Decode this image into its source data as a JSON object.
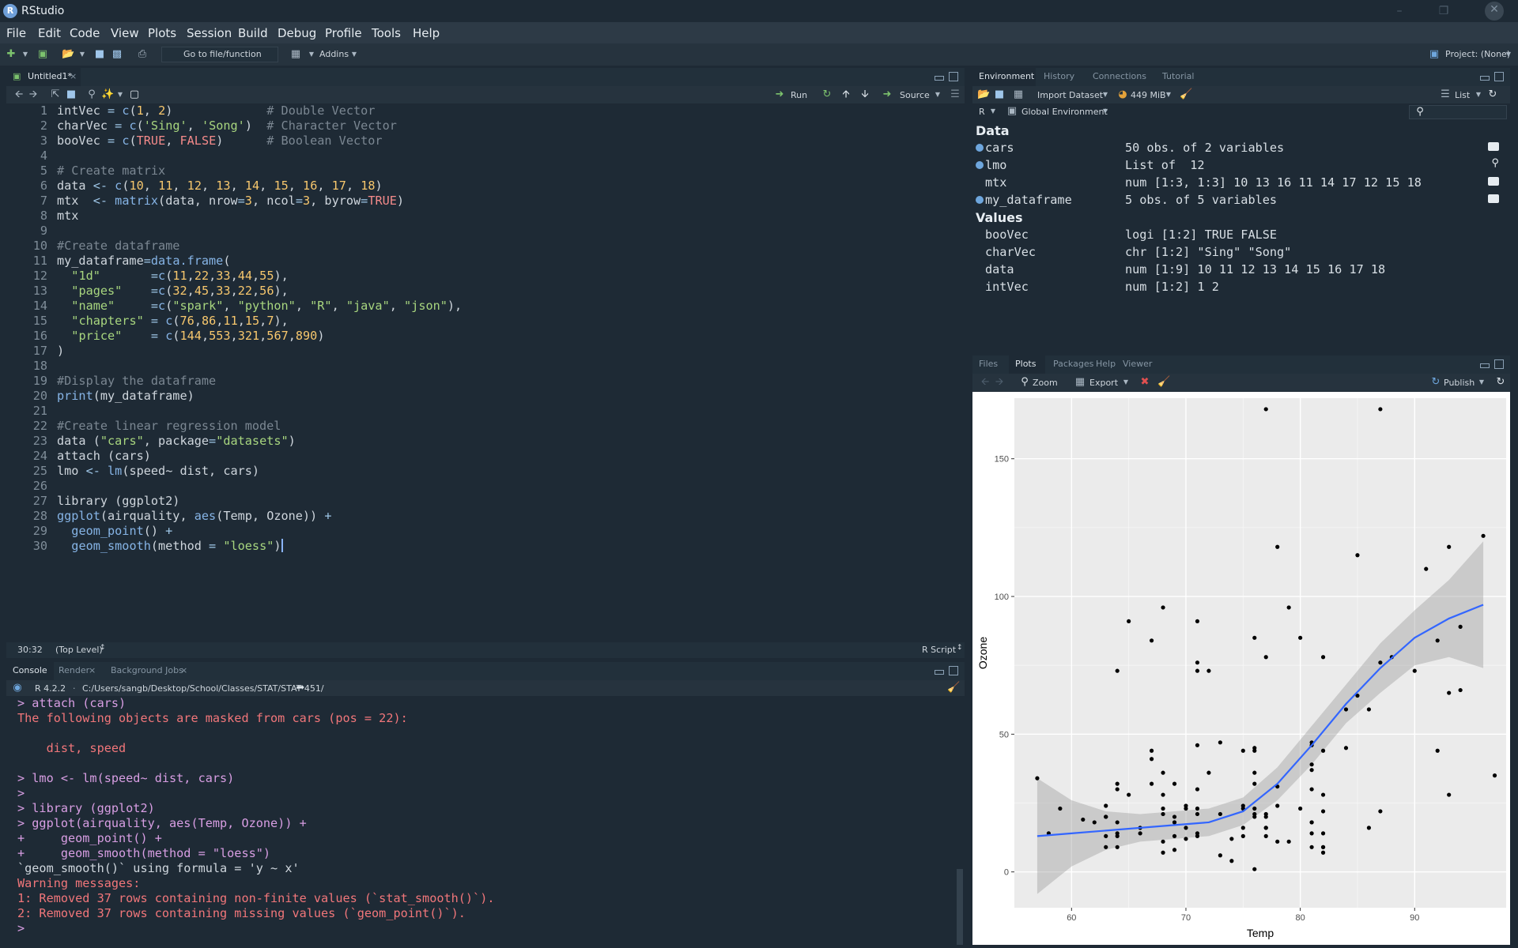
{
  "window": {
    "title": "RStudio",
    "logo_letter": "R"
  },
  "menu": [
    "File",
    "Edit",
    "Code",
    "View",
    "Plots",
    "Session",
    "Build",
    "Debug",
    "Profile",
    "Tools",
    "Help"
  ],
  "toolbar": {
    "goto_label": "Go to file/function",
    "addins_label": "Addins",
    "project_label": "Project: (None)"
  },
  "editor": {
    "tab_label": "Untitled1*",
    "run_label": "Run",
    "source_label": "Source",
    "cursor_pos": "30:32",
    "scope": "(Top Level)",
    "file_type": "R Script",
    "lines": [
      "intVec = c(1, 2)             # Double Vector",
      "charVec = c('Sing', 'Song')  # Character Vector",
      "booVec = c(TRUE, FALSE)      # Boolean Vector",
      "",
      "# Create matrix",
      "data <- c(10, 11, 12, 13, 14, 15, 16, 17, 18)",
      "mtx  <- matrix(data, nrow=3, ncol=3, byrow=TRUE)",
      "mtx",
      "",
      "#Create dataframe",
      "my_dataframe=data.frame(",
      "  \"1d\"       =c(11,22,33,44,55),",
      "  \"pages\"    =c(32,45,33,22,56),",
      "  \"name\"     =c(\"spark\", \"python\", \"R\", \"java\", \"json\"),",
      "  \"chapters\" = c(76,86,11,15,7),",
      "  \"price\"    = c(144,553,321,567,890)",
      ")",
      "",
      "#Display the dataframe",
      "print(my_dataframe)",
      "",
      "#Create linear regression model",
      "data (\"cars\", package=\"datasets\")",
      "attach (cars)",
      "lmo <- lm(speed~ dist, cars)",
      "",
      "library (ggplot2)",
      "ggplot(airquality, aes(Temp, Ozone)) +",
      "  geom_point() +",
      "  geom_smooth(method = \"loess\")"
    ]
  },
  "console": {
    "tabs": [
      "Console",
      "Render",
      "Background Jobs"
    ],
    "r_version": "R 4.2.2",
    "path": "C:/Users/sangb/Desktop/School/Classes/STAT/STAT 451/",
    "lines": [
      {
        "kind": "cmd",
        "text": "> attach (cars)"
      },
      {
        "kind": "err",
        "text": "The following objects are masked from cars (pos = 22):"
      },
      {
        "kind": "err",
        "text": ""
      },
      {
        "kind": "err",
        "text": "    dist, speed"
      },
      {
        "kind": "err",
        "text": ""
      },
      {
        "kind": "cmd",
        "text": "> lmo <- lm(speed~ dist, cars)"
      },
      {
        "kind": "cmd",
        "text": ">"
      },
      {
        "kind": "cmd",
        "text": "> library (ggplot2)"
      },
      {
        "kind": "cmd",
        "text": "> ggplot(airquality, aes(Temp, Ozone)) +"
      },
      {
        "kind": "cmd",
        "text": "+     geom_point() +"
      },
      {
        "kind": "cmd",
        "text": "+     geom_smooth(method = \"loess\")"
      },
      {
        "kind": "out",
        "text": "`geom_smooth()` using formula = 'y ~ x'"
      },
      {
        "kind": "err",
        "text": "Warning messages:"
      },
      {
        "kind": "err",
        "text": "1: Removed 37 rows containing non-finite values (`stat_smooth()`)."
      },
      {
        "kind": "err",
        "text": "2: Removed 37 rows containing missing values (`geom_point()`)."
      },
      {
        "kind": "cmd",
        "text": ">"
      }
    ]
  },
  "environment": {
    "tabs": [
      "Environment",
      "History",
      "Connections",
      "Tutorial"
    ],
    "import_label": "Import Dataset",
    "memory_label": "449 MiB",
    "list_label": "List",
    "lang_label": "R",
    "scope_label": "Global Environment",
    "data_header": "Data",
    "values_header": "Values",
    "data": [
      {
        "name": "cars",
        "value": "50 obs. of 2 variables",
        "dot": true,
        "icon": "grid-icon"
      },
      {
        "name": "lmo",
        "value": "List of  12",
        "dot": true,
        "icon": "search-icon"
      },
      {
        "name": "mtx",
        "value": "num [1:3, 1:3] 10 13 16 11 14 17 12 15 18",
        "dot": false,
        "icon": "grid-icon"
      },
      {
        "name": "my_dataframe",
        "value": "5 obs. of 5 variables",
        "dot": true,
        "icon": "grid-icon"
      }
    ],
    "values": [
      {
        "name": "booVec",
        "value": "logi [1:2] TRUE FALSE"
      },
      {
        "name": "charVec",
        "value": "chr [1:2] \"Sing\" \"Song\""
      },
      {
        "name": "data",
        "value": "num [1:9] 10 11 12 13 14 15 16 17 18"
      },
      {
        "name": "intVec",
        "value": "num [1:2] 1 2"
      }
    ]
  },
  "files": {
    "tabs": [
      "Files",
      "Plots",
      "Packages",
      "Help",
      "Viewer"
    ],
    "zoom_label": "Zoom",
    "export_label": "Export",
    "publish_label": "Publish"
  },
  "chart_data": {
    "type": "scatter",
    "xlabel": "Temp",
    "ylabel": "Ozone",
    "xlim": [
      55,
      98
    ],
    "ylim": [
      -13,
      172
    ],
    "xticks": [
      60,
      70,
      80,
      90
    ],
    "yticks": [
      0,
      50,
      100,
      150
    ],
    "grid": true,
    "points": [
      [
        67,
        41
      ],
      [
        72,
        36
      ],
      [
        74,
        12
      ],
      [
        62,
        18
      ],
      [
        65,
        28
      ],
      [
        59,
        23
      ],
      [
        61,
        19
      ],
      [
        69,
        8
      ],
      [
        66,
        16
      ],
      [
        68,
        11
      ],
      [
        58,
        14
      ],
      [
        64,
        18
      ],
      [
        66,
        14
      ],
      [
        57,
        34
      ],
      [
        73,
        6
      ],
      [
        81,
        30
      ],
      [
        79,
        11
      ],
      [
        76,
        1
      ],
      [
        78,
        11
      ],
      [
        74,
        4
      ],
      [
        67,
        32
      ],
      [
        84,
        45
      ],
      [
        85,
        115
      ],
      [
        81,
        37
      ],
      [
        82,
        44
      ],
      [
        87,
        168
      ],
      [
        90,
        73
      ],
      [
        87,
        76
      ],
      [
        93,
        118
      ],
      [
        92,
        84
      ],
      [
        80,
        85
      ],
      [
        79,
        96
      ],
      [
        77,
        78
      ],
      [
        72,
        73
      ],
      [
        65,
        91
      ],
      [
        73,
        47
      ],
      [
        76,
        32
      ],
      [
        77,
        20
      ],
      [
        71,
        23
      ],
      [
        71,
        21
      ],
      [
        78,
        24
      ],
      [
        67,
        44
      ],
      [
        76,
        21
      ],
      [
        68,
        28
      ],
      [
        82,
        9
      ],
      [
        64,
        13
      ],
      [
        71,
        46
      ],
      [
        81,
        18
      ],
      [
        69,
        13
      ],
      [
        63,
        24
      ],
      [
        70,
        16
      ],
      [
        77,
        13
      ],
      [
        75,
        23
      ],
      [
        76,
        36
      ],
      [
        68,
        7
      ],
      [
        82,
        14
      ],
      [
        64,
        30
      ],
      [
        71,
        14
      ],
      [
        81,
        18
      ],
      [
        69,
        20
      ],
      [
        63,
        9
      ],
      [
        70,
        12
      ],
      [
        77,
        16
      ],
      [
        75,
        16
      ],
      [
        76,
        20
      ],
      [
        68,
        23
      ],
      [
        82,
        22
      ],
      [
        64,
        32
      ],
      [
        86,
        59
      ],
      [
        85,
        64
      ],
      [
        81,
        39
      ],
      [
        82,
        9
      ],
      [
        86,
        16
      ],
      [
        88,
        78
      ],
      [
        97,
        35
      ],
      [
        94,
        66
      ],
      [
        96,
        122
      ],
      [
        94,
        89
      ],
      [
        91,
        110
      ],
      [
        92,
        44
      ],
      [
        93,
        28
      ],
      [
        93,
        65
      ],
      [
        87,
        22
      ],
      [
        84,
        59
      ],
      [
        80,
        23
      ],
      [
        78,
        31
      ],
      [
        75,
        44
      ],
      [
        73,
        21
      ],
      [
        81,
        9
      ],
      [
        76,
        45
      ],
      [
        77,
        168
      ],
      [
        71,
        73
      ],
      [
        71,
        76
      ],
      [
        78,
        118
      ],
      [
        67,
        84
      ],
      [
        76,
        85
      ],
      [
        68,
        96
      ],
      [
        82,
        78
      ],
      [
        64,
        73
      ],
      [
        71,
        91
      ],
      [
        81,
        47
      ],
      [
        69,
        32
      ],
      [
        63,
        20
      ],
      [
        70,
        23
      ],
      [
        77,
        21
      ],
      [
        75,
        24
      ],
      [
        76,
        44
      ],
      [
        68,
        21
      ],
      [
        82,
        28
      ],
      [
        64,
        9
      ],
      [
        71,
        13
      ],
      [
        81,
        46
      ],
      [
        69,
        18
      ],
      [
        63,
        13
      ],
      [
        70,
        24
      ],
      [
        77,
        16
      ],
      [
        75,
        13
      ],
      [
        76,
        23
      ],
      [
        68,
        36
      ],
      [
        82,
        7
      ],
      [
        64,
        14
      ],
      [
        71,
        30
      ],
      [
        81,
        14
      ],
      [
        69,
        18
      ],
      [
        63,
        20
      ]
    ],
    "smooth": [
      [
        57,
        13
      ],
      [
        60,
        14
      ],
      [
        63,
        15
      ],
      [
        66,
        16
      ],
      [
        69,
        17
      ],
      [
        72,
        18
      ],
      [
        75,
        22
      ],
      [
        78,
        32
      ],
      [
        81,
        46
      ],
      [
        84,
        61
      ],
      [
        87,
        74
      ],
      [
        90,
        85
      ],
      [
        93,
        92
      ],
      [
        96,
        97
      ]
    ],
    "band_upper": [
      [
        57,
        34
      ],
      [
        60,
        26
      ],
      [
        63,
        22
      ],
      [
        66,
        21
      ],
      [
        69,
        22
      ],
      [
        72,
        23
      ],
      [
        75,
        27
      ],
      [
        78,
        38
      ],
      [
        81,
        53
      ],
      [
        84,
        68
      ],
      [
        87,
        83
      ],
      [
        90,
        95
      ],
      [
        93,
        106
      ],
      [
        96,
        120
      ]
    ],
    "band_lower": [
      [
        57,
        -8
      ],
      [
        60,
        2
      ],
      [
        63,
        8
      ],
      [
        66,
        11
      ],
      [
        69,
        12
      ],
      [
        72,
        13
      ],
      [
        75,
        17
      ],
      [
        78,
        26
      ],
      [
        81,
        39
      ],
      [
        84,
        54
      ],
      [
        87,
        65
      ],
      [
        90,
        75
      ],
      [
        93,
        78
      ],
      [
        96,
        74
      ]
    ]
  }
}
